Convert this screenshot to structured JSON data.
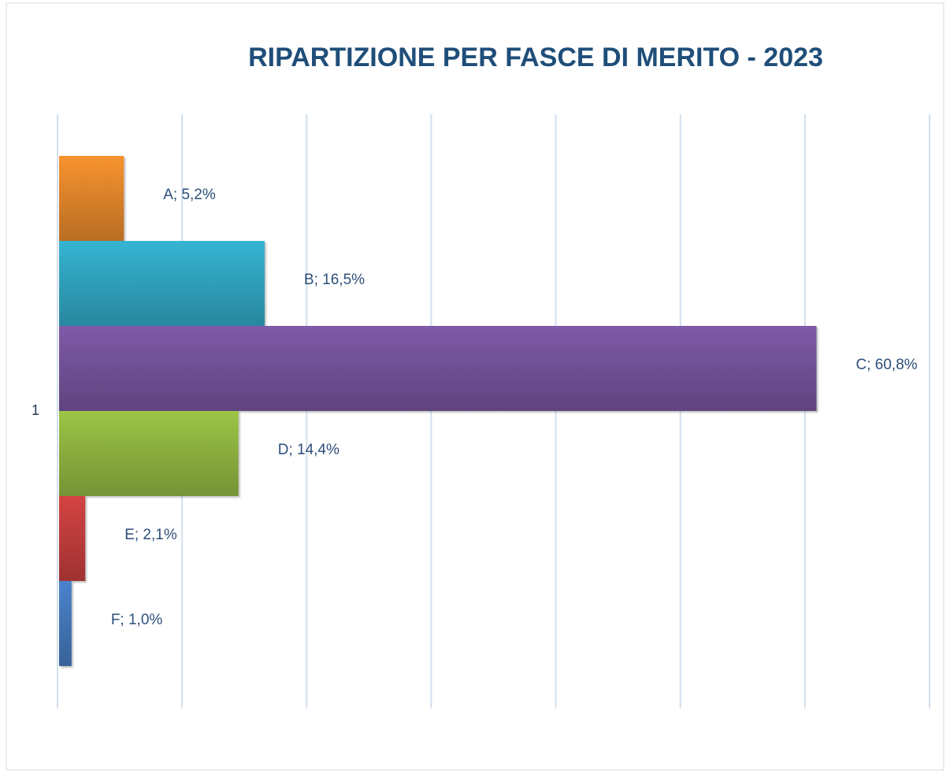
{
  "chart_data": {
    "type": "bar",
    "orientation": "horizontal",
    "title": "RIPARTIZIONE PER FASCE DI MERITO - 2023",
    "categories": [
      "1"
    ],
    "series": [
      {
        "name": "A",
        "color": "#f7922f",
        "values": [
          5.2
        ],
        "value_labels": [
          "A; 5,2%"
        ]
      },
      {
        "name": "B",
        "color": "#35b4d2",
        "values": [
          16.5
        ],
        "value_labels": [
          "B; 16,5%"
        ]
      },
      {
        "name": "C",
        "color": "#7e5aa8",
        "values": [
          60.8
        ],
        "value_labels": [
          "C; 60,8%"
        ]
      },
      {
        "name": "D",
        "color": "#9cc446",
        "values": [
          14.4
        ],
        "value_labels": [
          "D; 14,4%"
        ]
      },
      {
        "name": "E",
        "color": "#d44343",
        "values": [
          2.1
        ],
        "value_labels": [
          "E; 2,1%"
        ]
      },
      {
        "name": "F",
        "color": "#4a82cc",
        "values": [
          1.0
        ],
        "value_labels": [
          "F; 1,0%"
        ]
      }
    ],
    "xlim": [
      0,
      70
    ],
    "xticks": [
      0,
      10,
      20,
      30,
      40,
      50,
      60,
      70
    ],
    "grid": true
  }
}
